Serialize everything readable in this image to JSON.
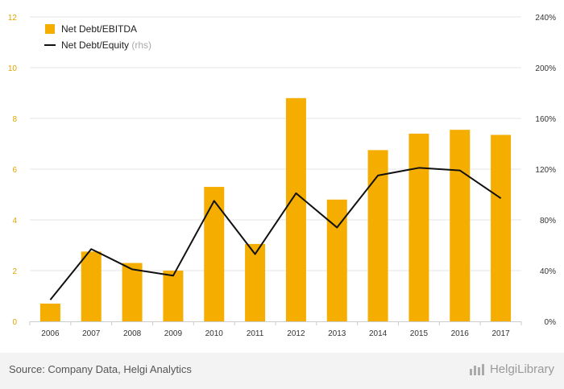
{
  "chart_data": {
    "type": "bar",
    "categories": [
      "2006",
      "2007",
      "2008",
      "2009",
      "2010",
      "2011",
      "2012",
      "2013",
      "2014",
      "2015",
      "2016",
      "2017"
    ],
    "series": [
      {
        "name": "Net Debt/EBITDA",
        "kind": "bar",
        "axis": "left",
        "values": [
          0.7,
          2.75,
          2.3,
          2.0,
          5.3,
          3.05,
          8.8,
          4.8,
          6.75,
          7.4,
          7.55,
          7.35
        ]
      },
      {
        "name": "Net Debt/Equity",
        "kind": "line",
        "axis": "right",
        "values": [
          17,
          57,
          41,
          36,
          95,
          53,
          101,
          74,
          115,
          121,
          119,
          97
        ]
      }
    ],
    "left_axis": {
      "min": 0,
      "max": 12,
      "ticks": [
        "0",
        "2",
        "4",
        "6",
        "8",
        "10",
        "12"
      ]
    },
    "right_axis": {
      "min": 0,
      "max": 240,
      "ticks": [
        "0%",
        "40%",
        "80%",
        "120%",
        "160%",
        "200%",
        "240%"
      ]
    },
    "bar_color": "#f5ae00",
    "line_color": "#111111",
    "legend": {
      "bar_label": "Net Debt/EBITDA",
      "line_label": "Net Debt/Equity",
      "line_suffix": "(rhs)"
    }
  },
  "footer": {
    "source": "Source: Company Data, Helgi Analytics",
    "brand": "HelgiLibrary"
  }
}
